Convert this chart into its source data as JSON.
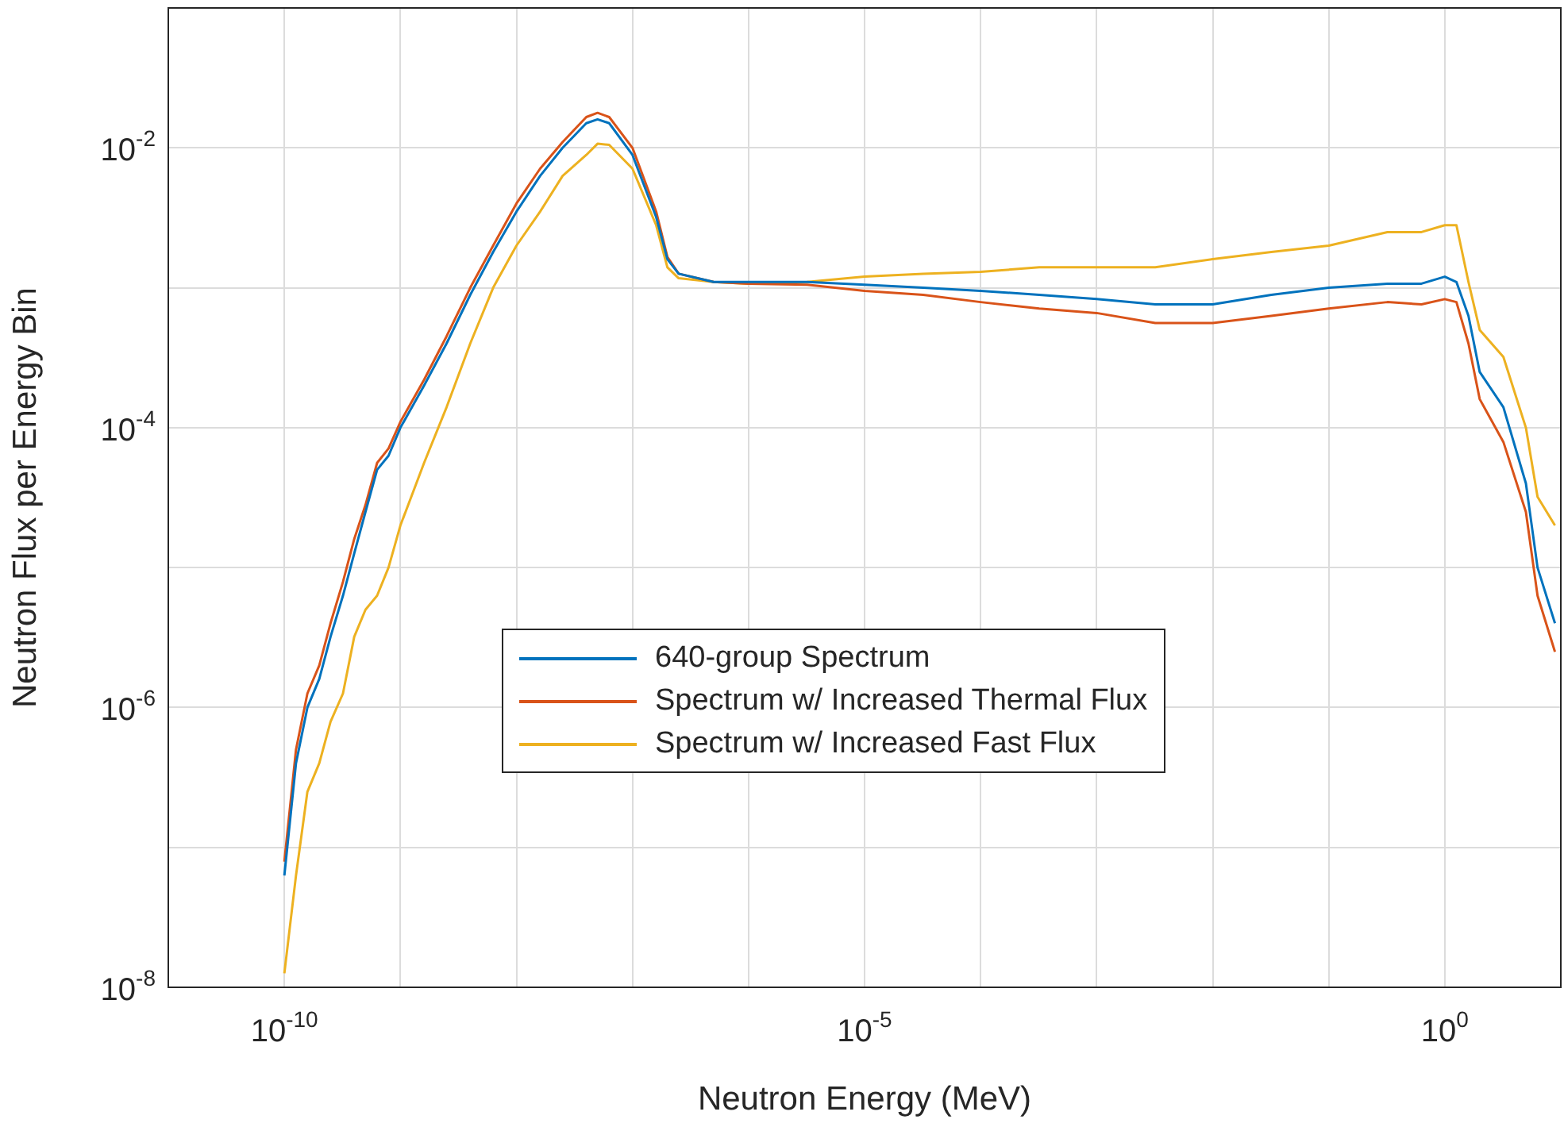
{
  "chart_data": {
    "type": "line",
    "xlabel": "Neutron Energy (MeV)",
    "ylabel": "Neutron Flux per Energy Bin",
    "log": "xy",
    "grid": true,
    "legend": "bottom",
    "marker": "none",
    "line_style": "solid",
    "xlim": [
      1e-11,
      10
    ],
    "ylim": [
      1e-08,
      0.1
    ],
    "xticks": [
      {
        "value": 1e-11,
        "label": null
      },
      {
        "value": 1e-10,
        "label": "10$^{-10}$"
      },
      {
        "value": 1e-09,
        "label": null
      },
      {
        "value": 1e-08,
        "label": null
      },
      {
        "value": 1e-07,
        "label": null
      },
      {
        "value": 1e-06,
        "label": null
      },
      {
        "value": 1e-05,
        "label": "10$^{-5}$"
      },
      {
        "value": 0.0001,
        "label": null
      },
      {
        "value": 0.001,
        "label": null
      },
      {
        "value": 0.01,
        "label": null
      },
      {
        "value": 0.1,
        "label": null
      },
      {
        "value": 1,
        "label": "10$^{0}$"
      },
      {
        "value": 10,
        "label": null
      }
    ],
    "yticks": [
      {
        "value": 1e-08,
        "label": "10$^{-8}$"
      },
      {
        "value": 1e-07,
        "label": null
      },
      {
        "value": 1e-06,
        "label": "10$^{-6}$"
      },
      {
        "value": 1e-05,
        "label": null
      },
      {
        "value": 0.0001,
        "label": "10$^{-4}$"
      },
      {
        "value": 0.001,
        "label": null
      },
      {
        "value": 0.01,
        "label": "10$^{-2}$"
      },
      {
        "value": 0.1,
        "label": null
      }
    ],
    "x": [
      1e-10,
      1.26e-10,
      1.58e-10,
      2e-10,
      2.5e-10,
      3.2e-10,
      4e-10,
      5e-10,
      6.3e-10,
      7.9e-10,
      1e-09,
      1.6e-09,
      2.5e-09,
      4e-09,
      6.3e-09,
      1e-08,
      1.6e-08,
      2.5e-08,
      4e-08,
      5e-08,
      6.3e-08,
      1e-07,
      1.6e-07,
      2e-07,
      2.5e-07,
      5e-07,
      1e-06,
      3.2e-06,
      1e-05,
      3.2e-05,
      0.0001,
      0.00032,
      0.001,
      0.0032,
      0.01,
      0.032,
      0.1,
      0.32,
      0.63,
      1,
      1.26,
      1.6,
      2,
      3.2,
      5,
      6.3,
      8.9
    ],
    "series": [
      {
        "name": "640-group Spectrum",
        "color": "#0072bd",
        "values": [
          6.3e-08,
          4e-07,
          1e-06,
          1.6e-06,
          3.2e-06,
          6.3e-06,
          1.26e-05,
          2.5e-05,
          5e-05,
          6.3e-05,
          0.0001,
          0.0002,
          0.0004,
          0.00089,
          0.0018,
          0.0035,
          0.0063,
          0.01,
          0.015,
          0.016,
          0.015,
          0.0089,
          0.0032,
          0.0016,
          0.00126,
          0.0011,
          0.0011,
          0.0011,
          0.00105,
          0.001,
          0.00095,
          0.00089,
          0.00083,
          0.00076,
          0.00076,
          0.00089,
          0.001,
          0.00107,
          0.00107,
          0.0012,
          0.0011,
          0.00063,
          0.00025,
          0.00014,
          4e-05,
          1e-05,
          4e-06
        ]
      },
      {
        "name": "Spectrum w/ Increased Thermal Flux",
        "color": "#d95319",
        "values": [
          7.9e-08,
          5e-07,
          1.26e-06,
          2e-06,
          4e-06,
          7.9e-06,
          1.6e-05,
          2.8e-05,
          5.6e-05,
          7.1e-05,
          0.00011,
          0.00022,
          0.00045,
          0.001,
          0.002,
          0.004,
          0.0071,
          0.011,
          0.0166,
          0.0178,
          0.0166,
          0.01,
          0.0035,
          0.00166,
          0.00126,
          0.0011,
          0.00107,
          0.00105,
          0.00095,
          0.00089,
          0.00079,
          0.00071,
          0.00066,
          0.00056,
          0.00056,
          0.00063,
          0.00071,
          0.00079,
          0.00076,
          0.00083,
          0.00079,
          0.0004,
          0.00016,
          7.9e-05,
          2.5e-05,
          6.3e-06,
          2.5e-06
        ]
      },
      {
        "name": "Spectrum w/ Increased Fast Flux",
        "color": "#edb120",
        "values": [
          1.26e-08,
          6.3e-08,
          2.5e-07,
          4e-07,
          7.9e-07,
          1.26e-06,
          3.2e-06,
          5e-06,
          6.3e-06,
          1e-05,
          2e-05,
          5.6e-05,
          0.00014,
          0.0004,
          0.001,
          0.002,
          0.0035,
          0.0063,
          0.0089,
          0.0107,
          0.0105,
          0.0071,
          0.0028,
          0.0014,
          0.00117,
          0.0011,
          0.00107,
          0.0011,
          0.0012,
          0.00126,
          0.0013,
          0.0014,
          0.0014,
          0.0014,
          0.0016,
          0.0018,
          0.002,
          0.0025,
          0.0025,
          0.0028,
          0.0028,
          0.0011,
          0.0005,
          0.00032,
          0.0001,
          3.2e-05,
          2e-05
        ]
      }
    ]
  }
}
